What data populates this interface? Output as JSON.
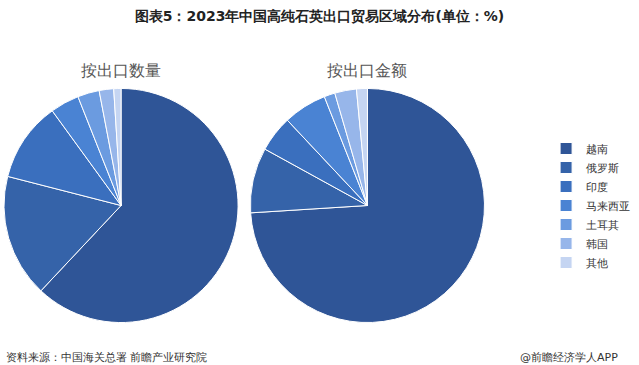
{
  "title": "图表5：2023年中国高纯石英出口贸易区域分布(单位：%)",
  "source": "资料来源：中国海关总署 前瞻产业研究院",
  "credit": "@前瞻经济学人APP",
  "chart_data": [
    {
      "type": "pie",
      "title": "按出口数量",
      "categories": [
        "越南",
        "俄罗斯",
        "印度",
        "马来西亚",
        "土耳其",
        "韩国",
        "其他"
      ],
      "values": [
        62,
        17,
        11,
        4,
        3,
        2,
        1
      ],
      "colors": [
        "#2f5597",
        "#3563a9",
        "#3a6fbe",
        "#4a83d3",
        "#6b9be0",
        "#97b6ea",
        "#c5d5f2"
      ],
      "legend": "right"
    },
    {
      "type": "pie",
      "title": "按出口金额",
      "categories": [
        "越南",
        "俄罗斯",
        "印度",
        "马来西亚",
        "土耳其",
        "韩国",
        "其他"
      ],
      "values": [
        74,
        9,
        5,
        6,
        1.5,
        3,
        1.5
      ],
      "colors": [
        "#2f5597",
        "#3563a9",
        "#3a6fbe",
        "#4a83d3",
        "#6b9be0",
        "#97b6ea",
        "#c5d5f2"
      ],
      "legend": "right"
    }
  ]
}
